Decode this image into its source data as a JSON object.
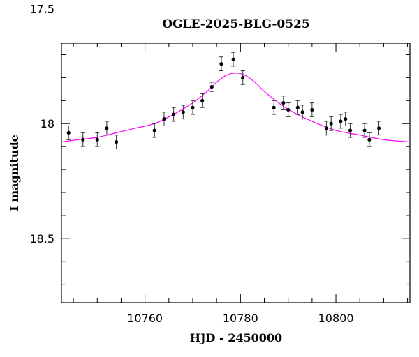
{
  "chart_data": {
    "type": "scatter",
    "title": "OGLE-2025-BLG-0525",
    "xlabel": "HJD - 2450000",
    "ylabel": "I magnitude",
    "xlim": [
      10742.5,
      10815.5
    ],
    "ylim": [
      18.78,
      17.65
    ],
    "y_inverted": true,
    "grid": false,
    "x_ticks": [
      {
        "value": 10760,
        "label": "10760"
      },
      {
        "value": 10780,
        "label": "10780"
      },
      {
        "value": 10800,
        "label": "10800"
      }
    ],
    "y_ticks": [
      {
        "value": 17.5,
        "label": "17.5"
      },
      {
        "value": 18.0,
        "label": "18"
      },
      {
        "value": 18.5,
        "label": "18.5"
      }
    ],
    "x_minor_step": 5,
    "y_minor_step": 0.1,
    "series": [
      {
        "kind": "points_with_errorbars",
        "color": "#000000",
        "x": [
          10744.0,
          10747.0,
          10750.0,
          10752.0,
          10754.0,
          10762.0,
          10764.0,
          10766.0,
          10768.0,
          10770.0,
          10772.0,
          10774.0,
          10776.0,
          10778.5,
          10780.5,
          10787.0,
          10789.0,
          10790.0,
          10792.0,
          10793.0,
          10795.0,
          10798.0,
          10799.0,
          10801.0,
          10802.0,
          10803.0,
          10806.0,
          10807.0,
          10809.0
        ],
        "y": [
          18.04,
          18.07,
          18.07,
          18.02,
          18.08,
          18.03,
          17.98,
          17.96,
          17.95,
          17.93,
          17.9,
          17.84,
          17.74,
          17.72,
          17.8,
          17.93,
          17.91,
          17.94,
          17.93,
          17.95,
          17.94,
          18.02,
          18.0,
          17.99,
          17.98,
          18.03,
          18.03,
          18.07,
          18.02
        ],
        "yerr": [
          0.03,
          0.03,
          0.03,
          0.03,
          0.03,
          0.03,
          0.03,
          0.03,
          0.03,
          0.03,
          0.03,
          0.02,
          0.03,
          0.03,
          0.03,
          0.03,
          0.03,
          0.03,
          0.03,
          0.03,
          0.03,
          0.03,
          0.03,
          0.03,
          0.03,
          0.03,
          0.03,
          0.03,
          0.03
        ]
      },
      {
        "kind": "model_curve",
        "color": "#ff00ff",
        "x": [
          10742.5,
          10746,
          10750,
          10754,
          10758,
          10762,
          10766,
          10770,
          10773,
          10775,
          10777,
          10779,
          10781,
          10783,
          10785,
          10788,
          10791,
          10795,
          10800,
          10805,
          10810,
          10815.5
        ],
        "y": [
          18.08,
          18.07,
          18.06,
          18.04,
          18.02,
          18.0,
          17.96,
          17.91,
          17.86,
          17.82,
          17.79,
          17.78,
          17.79,
          17.82,
          17.86,
          17.91,
          17.95,
          17.99,
          18.03,
          18.05,
          18.07,
          18.08
        ]
      }
    ]
  }
}
